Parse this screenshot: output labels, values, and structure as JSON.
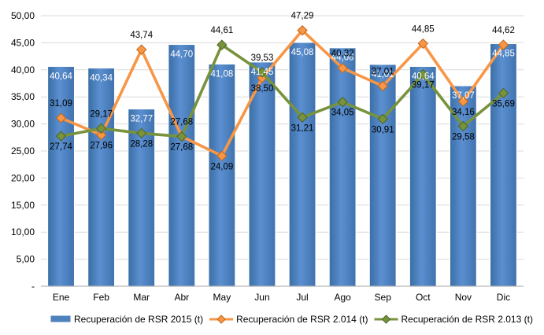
{
  "chart_data": {
    "type": "bar",
    "categories": [
      "Ene",
      "Feb",
      "Mar",
      "Abr",
      "May",
      "Jun",
      "Jul",
      "Ago",
      "Sep",
      "Oct",
      "Nov",
      "Dic"
    ],
    "y_tick_labels": [
      "-",
      "5,00",
      "10,00",
      "15,00",
      "20,00",
      "25,00",
      "30,00",
      "35,00",
      "40,00",
      "45,00",
      "50,00"
    ],
    "ylim": [
      0,
      50
    ],
    "grid": true,
    "legend_position": "bottom",
    "series": [
      {
        "name": "Recuperación de RSR 2015 (t)",
        "kind": "bar",
        "color": "#4f81bd",
        "values": [
          40.64,
          40.34,
          32.77,
          44.7,
          41.08,
          41.45,
          45.08,
          44.08,
          41.01,
          40.64,
          37.07,
          44.85
        ],
        "labels": [
          "40,64",
          "40,34",
          "32,77",
          "44,70",
          "41,08",
          "41,45",
          "45,08",
          "44,08",
          "41,01",
          "40,64",
          "37,07",
          "44,85"
        ]
      },
      {
        "name": "Recuperación de RSR 2.014 (t)",
        "kind": "line",
        "color": "#f79646",
        "values": [
          31.09,
          27.96,
          43.74,
          27.68,
          24.09,
          38.5,
          47.29,
          40.32,
          37.01,
          44.85,
          34.16,
          44.62
        ],
        "labels": [
          "31,09",
          "27,96",
          "43,74",
          "27,68",
          "24,09",
          "38,50",
          "47,29",
          "40,32",
          "37,01",
          "44,85",
          "34,16",
          "44,62"
        ]
      },
      {
        "name": "Recuperación de RSR 2.013 (t)",
        "kind": "line",
        "color": "#77933c",
        "values": [
          27.74,
          29.17,
          28.28,
          27.68,
          44.61,
          39.53,
          31.21,
          34.05,
          30.91,
          39.17,
          29.58,
          35.69
        ],
        "labels": [
          "27,74",
          "29,17",
          "28,28",
          "27,68",
          "44,61",
          "39,53",
          "31,21",
          "34,05",
          "30,91",
          "39,17",
          "29,58",
          "35,69"
        ]
      }
    ]
  }
}
